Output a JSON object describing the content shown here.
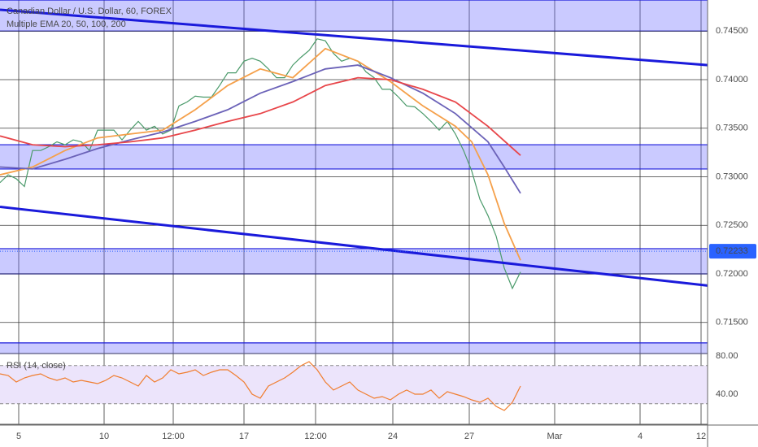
{
  "chart_data": [
    {
      "type": "line",
      "title": "Canadian Dollar / U.S. Dollar, 60, FOREX",
      "subtitle": "Multiple EMA 20, 50, 100, 200",
      "xlim": [
        0,
        174
      ],
      "ylim": [
        0.7118,
        0.7482
      ],
      "xticks": [
        {
          "value": 4.6,
          "label": "5"
        },
        {
          "value": 25.6,
          "label": "10"
        },
        {
          "value": 42.6,
          "label": "12:00"
        },
        {
          "value": 60,
          "label": "17"
        },
        {
          "value": 77.6,
          "label": "12:00"
        },
        {
          "value": 96.6,
          "label": "24"
        },
        {
          "value": 115.4,
          "label": "27"
        },
        {
          "value": 136.4,
          "label": "Mar"
        },
        {
          "value": 157.4,
          "label": "4"
        },
        {
          "value": 172.4,
          "label": "12"
        }
      ],
      "yticks": [
        {
          "value": 0.715,
          "label": "0.71500"
        },
        {
          "value": 0.72,
          "label": "0.72000"
        },
        {
          "value": 0.725,
          "label": "0.72500"
        },
        {
          "value": 0.73,
          "label": "0.73000"
        },
        {
          "value": 0.735,
          "label": "0.73500"
        },
        {
          "value": 0.74,
          "label": "0.74000"
        },
        {
          "value": 0.745,
          "label": "0.74500"
        }
      ],
      "grid": true,
      "last_price": 0.72233,
      "zones": [
        {
          "from": 0.745,
          "to": 0.7482
        },
        {
          "from": 0.7308,
          "to": 0.7333
        },
        {
          "from": 0.72,
          "to": 0.7226
        },
        {
          "from": 0.7118,
          "to": 0.7129
        }
      ],
      "zone_color": "#6666ff",
      "trend_lines": [
        {
          "color": "#1a1adb",
          "x": [
            0,
            174
          ],
          "values": [
            0.7472,
            0.7415
          ]
        },
        {
          "color": "#1a1adb",
          "x": [
            0,
            174
          ],
          "values": [
            0.7269,
            0.7188
          ]
        }
      ],
      "series": [
        {
          "color": "#4a9a6a",
          "x": [
            0,
            2,
            4,
            6,
            8,
            10,
            12,
            14,
            16,
            18,
            20,
            22,
            24,
            26,
            28,
            30,
            32,
            34,
            36,
            38,
            40,
            42,
            44,
            46,
            48,
            50,
            52,
            54,
            56,
            58,
            60,
            62,
            64,
            66,
            68,
            70,
            72,
            74,
            76,
            78,
            80,
            82,
            84,
            86,
            88,
            90,
            92,
            94,
            96,
            98,
            100,
            102,
            104,
            106,
            108,
            110,
            112,
            114,
            116,
            118,
            120,
            122,
            124,
            126,
            128
          ],
          "values": [
            0.7294,
            0.7302,
            0.7298,
            0.729,
            0.7327,
            0.7327,
            0.7331,
            0.7336,
            0.7333,
            0.7338,
            0.7336,
            0.7327,
            0.7348,
            0.7348,
            0.7348,
            0.7338,
            0.7348,
            0.7357,
            0.7348,
            0.7352,
            0.7344,
            0.7348,
            0.7373,
            0.7377,
            0.7383,
            0.7382,
            0.7382,
            0.7394,
            0.7407,
            0.7407,
            0.7419,
            0.7422,
            0.7419,
            0.7411,
            0.7402,
            0.7402,
            0.7415,
            0.7423,
            0.743,
            0.7442,
            0.744,
            0.7427,
            0.7419,
            0.7422,
            0.7419,
            0.7408,
            0.7402,
            0.739,
            0.739,
            0.7382,
            0.7373,
            0.7372,
            0.7365,
            0.7357,
            0.7348,
            0.7357,
            0.7344,
            0.7327,
            0.7306,
            0.7277,
            0.726,
            0.7239,
            0.7206,
            0.7185,
            0.7202
          ]
        },
        {
          "color": "#f5a04a",
          "x": [
            0,
            8,
            16,
            24,
            32,
            40,
            48,
            56,
            64,
            72,
            80,
            88,
            96,
            104,
            112,
            116,
            120,
            124,
            128
          ],
          "values": [
            0.7302,
            0.731,
            0.7327,
            0.734,
            0.7344,
            0.7348,
            0.7369,
            0.7394,
            0.7411,
            0.7402,
            0.7432,
            0.7419,
            0.7398,
            0.7373,
            0.7352,
            0.7336,
            0.7302,
            0.7252,
            0.7214
          ]
        },
        {
          "color": "#6b62b8",
          "x": [
            0,
            8,
            16,
            24,
            32,
            40,
            48,
            56,
            64,
            72,
            80,
            88,
            96,
            104,
            112,
            120,
            124,
            128
          ],
          "values": [
            0.731,
            0.7308,
            0.7318,
            0.7329,
            0.7338,
            0.7346,
            0.7357,
            0.7369,
            0.7386,
            0.7398,
            0.7411,
            0.7415,
            0.7402,
            0.7386,
            0.7365,
            0.7336,
            0.731,
            0.7283
          ]
        },
        {
          "color": "#e8464a",
          "x": [
            0,
            8,
            16,
            24,
            32,
            40,
            48,
            56,
            64,
            72,
            80,
            88,
            96,
            104,
            112,
            120,
            128
          ],
          "values": [
            0.7342,
            0.7333,
            0.7331,
            0.7333,
            0.7336,
            0.734,
            0.7348,
            0.7357,
            0.7365,
            0.7377,
            0.7394,
            0.7402,
            0.74,
            0.739,
            0.7377,
            0.7352,
            0.7322
          ]
        }
      ]
    },
    {
      "type": "line",
      "title": "RSI (14, close)",
      "xlim": [
        0,
        174
      ],
      "ylim": [
        8.5,
        81.7
      ],
      "yticks": [
        {
          "value": 80,
          "label": "80.00"
        },
        {
          "value": 40,
          "label": "40.00"
        }
      ],
      "bands": [
        30,
        70
      ],
      "band_color": "#ece4fb",
      "series": [
        {
          "color": "#f07d2e",
          "x": [
            0,
            2,
            4,
            6,
            8,
            10,
            12,
            14,
            16,
            18,
            20,
            22,
            24,
            26,
            28,
            30,
            32,
            34,
            36,
            38,
            40,
            42,
            44,
            46,
            48,
            50,
            52,
            54,
            56,
            58,
            60,
            62,
            64,
            66,
            68,
            70,
            72,
            74,
            76,
            78,
            80,
            82,
            84,
            86,
            88,
            90,
            92,
            94,
            96,
            98,
            100,
            102,
            104,
            106,
            108,
            110,
            112,
            114,
            116,
            118,
            120,
            122,
            124,
            126,
            128
          ],
          "values": [
            61.3,
            59.6,
            52.8,
            57.0,
            59.6,
            61.3,
            57.0,
            54.5,
            57.0,
            52.8,
            54.5,
            52.8,
            51.1,
            54.5,
            59.6,
            57.0,
            52.8,
            48.5,
            59.6,
            52.8,
            57.0,
            65.5,
            61.3,
            63.0,
            65.5,
            59.6,
            63.0,
            65.5,
            65.5,
            59.6,
            52.8,
            40.0,
            35.7,
            48.5,
            52.8,
            57.0,
            63.0,
            69.8,
            74.0,
            65.5,
            52.8,
            44.3,
            48.5,
            52.8,
            44.3,
            40.0,
            35.7,
            37.4,
            34.0,
            40.0,
            44.3,
            40.0,
            40.0,
            44.3,
            35.7,
            42.6,
            40.0,
            37.4,
            34.0,
            31.5,
            35.7,
            27.2,
            23.0,
            31.5,
            48.5
          ]
        }
      ]
    }
  ]
}
